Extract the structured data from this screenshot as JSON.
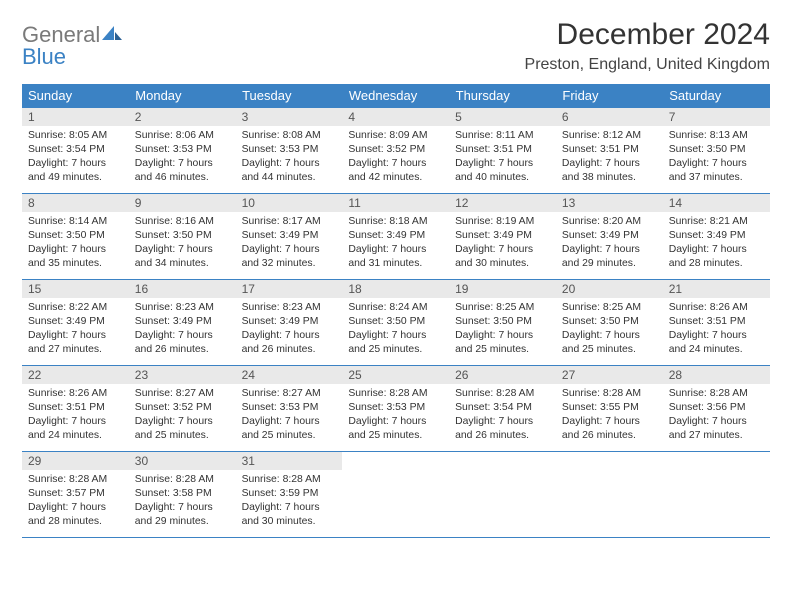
{
  "logo": {
    "general": "General",
    "blue": "Blue"
  },
  "title": "December 2024",
  "location": "Preston, England, United Kingdom",
  "colors": {
    "header_bg": "#3b82c4",
    "header_text": "#ffffff",
    "daynum_bg": "#e9e9e9",
    "border": "#3b82c4",
    "logo_gray": "#7a7a7a",
    "logo_blue": "#3b82c4"
  },
  "weekdays": [
    "Sunday",
    "Monday",
    "Tuesday",
    "Wednesday",
    "Thursday",
    "Friday",
    "Saturday"
  ],
  "weeks": [
    [
      {
        "n": "1",
        "sunrise": "8:05 AM",
        "sunset": "3:54 PM",
        "dl": "7 hours and 49 minutes."
      },
      {
        "n": "2",
        "sunrise": "8:06 AM",
        "sunset": "3:53 PM",
        "dl": "7 hours and 46 minutes."
      },
      {
        "n": "3",
        "sunrise": "8:08 AM",
        "sunset": "3:53 PM",
        "dl": "7 hours and 44 minutes."
      },
      {
        "n": "4",
        "sunrise": "8:09 AM",
        "sunset": "3:52 PM",
        "dl": "7 hours and 42 minutes."
      },
      {
        "n": "5",
        "sunrise": "8:11 AM",
        "sunset": "3:51 PM",
        "dl": "7 hours and 40 minutes."
      },
      {
        "n": "6",
        "sunrise": "8:12 AM",
        "sunset": "3:51 PM",
        "dl": "7 hours and 38 minutes."
      },
      {
        "n": "7",
        "sunrise": "8:13 AM",
        "sunset": "3:50 PM",
        "dl": "7 hours and 37 minutes."
      }
    ],
    [
      {
        "n": "8",
        "sunrise": "8:14 AM",
        "sunset": "3:50 PM",
        "dl": "7 hours and 35 minutes."
      },
      {
        "n": "9",
        "sunrise": "8:16 AM",
        "sunset": "3:50 PM",
        "dl": "7 hours and 34 minutes."
      },
      {
        "n": "10",
        "sunrise": "8:17 AM",
        "sunset": "3:49 PM",
        "dl": "7 hours and 32 minutes."
      },
      {
        "n": "11",
        "sunrise": "8:18 AM",
        "sunset": "3:49 PM",
        "dl": "7 hours and 31 minutes."
      },
      {
        "n": "12",
        "sunrise": "8:19 AM",
        "sunset": "3:49 PM",
        "dl": "7 hours and 30 minutes."
      },
      {
        "n": "13",
        "sunrise": "8:20 AM",
        "sunset": "3:49 PM",
        "dl": "7 hours and 29 minutes."
      },
      {
        "n": "14",
        "sunrise": "8:21 AM",
        "sunset": "3:49 PM",
        "dl": "7 hours and 28 minutes."
      }
    ],
    [
      {
        "n": "15",
        "sunrise": "8:22 AM",
        "sunset": "3:49 PM",
        "dl": "7 hours and 27 minutes."
      },
      {
        "n": "16",
        "sunrise": "8:23 AM",
        "sunset": "3:49 PM",
        "dl": "7 hours and 26 minutes."
      },
      {
        "n": "17",
        "sunrise": "8:23 AM",
        "sunset": "3:49 PM",
        "dl": "7 hours and 26 minutes."
      },
      {
        "n": "18",
        "sunrise": "8:24 AM",
        "sunset": "3:50 PM",
        "dl": "7 hours and 25 minutes."
      },
      {
        "n": "19",
        "sunrise": "8:25 AM",
        "sunset": "3:50 PM",
        "dl": "7 hours and 25 minutes."
      },
      {
        "n": "20",
        "sunrise": "8:25 AM",
        "sunset": "3:50 PM",
        "dl": "7 hours and 25 minutes."
      },
      {
        "n": "21",
        "sunrise": "8:26 AM",
        "sunset": "3:51 PM",
        "dl": "7 hours and 24 minutes."
      }
    ],
    [
      {
        "n": "22",
        "sunrise": "8:26 AM",
        "sunset": "3:51 PM",
        "dl": "7 hours and 24 minutes."
      },
      {
        "n": "23",
        "sunrise": "8:27 AM",
        "sunset": "3:52 PM",
        "dl": "7 hours and 25 minutes."
      },
      {
        "n": "24",
        "sunrise": "8:27 AM",
        "sunset": "3:53 PM",
        "dl": "7 hours and 25 minutes."
      },
      {
        "n": "25",
        "sunrise": "8:28 AM",
        "sunset": "3:53 PM",
        "dl": "7 hours and 25 minutes."
      },
      {
        "n": "26",
        "sunrise": "8:28 AM",
        "sunset": "3:54 PM",
        "dl": "7 hours and 26 minutes."
      },
      {
        "n": "27",
        "sunrise": "8:28 AM",
        "sunset": "3:55 PM",
        "dl": "7 hours and 26 minutes."
      },
      {
        "n": "28",
        "sunrise": "8:28 AM",
        "sunset": "3:56 PM",
        "dl": "7 hours and 27 minutes."
      }
    ],
    [
      {
        "n": "29",
        "sunrise": "8:28 AM",
        "sunset": "3:57 PM",
        "dl": "7 hours and 28 minutes."
      },
      {
        "n": "30",
        "sunrise": "8:28 AM",
        "sunset": "3:58 PM",
        "dl": "7 hours and 29 minutes."
      },
      {
        "n": "31",
        "sunrise": "8:28 AM",
        "sunset": "3:59 PM",
        "dl": "7 hours and 30 minutes."
      },
      null,
      null,
      null,
      null
    ]
  ],
  "labels": {
    "sunrise": "Sunrise:",
    "sunset": "Sunset:",
    "daylight": "Daylight:"
  }
}
